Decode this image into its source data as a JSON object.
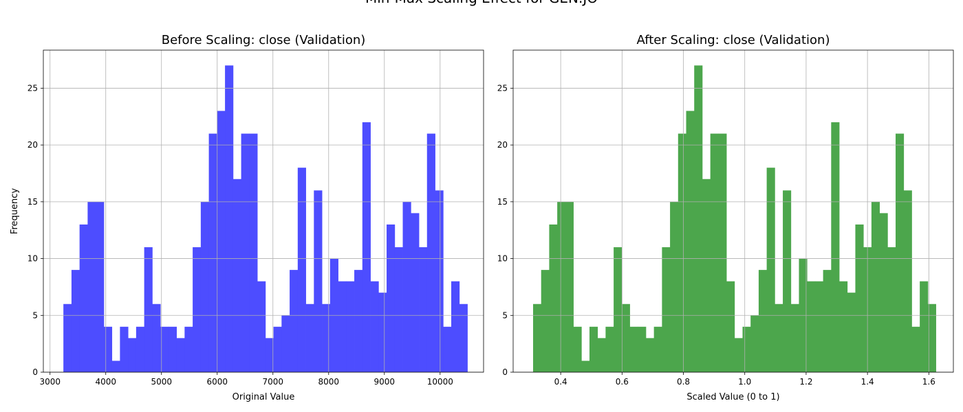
{
  "figure": {
    "suptitle": "Min-Max Scaling Effect for GEN.JO"
  },
  "chart_data": [
    {
      "type": "bar",
      "subtype": "histogram",
      "title": "Before Scaling: close (Validation)",
      "xlabel": "Original Value",
      "ylabel": "Frequency",
      "color": "#4d4dff",
      "grid": true,
      "xlim": [
        2880,
        10780
      ],
      "ylim": [
        0,
        28.35
      ],
      "xticks": [
        3000,
        4000,
        5000,
        6000,
        7000,
        8000,
        9000,
        10000
      ],
      "yticks": [
        0,
        5,
        10,
        15,
        20,
        25
      ],
      "bin_start": 3240,
      "bin_width": 145,
      "counts": [
        6,
        9,
        13,
        15,
        15,
        4,
        1,
        4,
        3,
        4,
        11,
        6,
        4,
        4,
        3,
        4,
        11,
        15,
        21,
        23,
        27,
        17,
        21,
        21,
        8,
        3,
        4,
        5,
        9,
        18,
        6,
        16,
        6,
        10,
        8,
        8,
        9,
        22,
        8,
        7,
        13,
        11,
        15,
        14,
        11,
        21,
        16,
        4,
        8,
        6
      ]
    },
    {
      "type": "bar",
      "subtype": "histogram",
      "title": "After Scaling: close (Validation)",
      "xlabel": "Scaled Value (0 to 1)",
      "ylabel": "",
      "color": "#4ca64c",
      "grid": true,
      "xlim": [
        0.245,
        1.68
      ],
      "ylim": [
        0,
        28.35
      ],
      "xticks": [
        0.4,
        0.6,
        0.8,
        1.0,
        1.2,
        1.4,
        1.6
      ],
      "xtick_labels": [
        "0.4",
        "0.6",
        "0.8",
        "1.0",
        "1.2",
        "1.4",
        "1.6"
      ],
      "yticks": [
        0,
        5,
        10,
        15,
        20,
        25
      ],
      "bin_start": 0.31,
      "bin_width": 0.02626,
      "counts": [
        6,
        9,
        13,
        15,
        15,
        4,
        1,
        4,
        3,
        4,
        11,
        6,
        4,
        4,
        3,
        4,
        11,
        15,
        21,
        23,
        27,
        17,
        21,
        21,
        8,
        3,
        4,
        5,
        9,
        18,
        6,
        16,
        6,
        10,
        8,
        8,
        9,
        22,
        8,
        7,
        13,
        11,
        15,
        14,
        11,
        21,
        16,
        4,
        8,
        6
      ]
    }
  ]
}
